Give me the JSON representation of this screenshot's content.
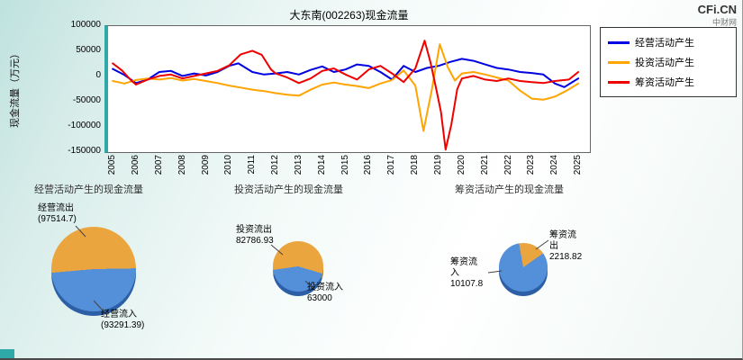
{
  "watermark": {
    "brand": "CFi.CN",
    "sub": "中财网"
  },
  "colors": {
    "outflow": "#eba53e",
    "inflow": "#5390d9",
    "outflow_dark": "#b87c15",
    "inflow_dark": "#2c5fa6",
    "accent_teal": "#2fa8a8"
  },
  "chart_data": {
    "type": "line",
    "title": "大东南(002263)现金流量",
    "xlabel": "",
    "ylabel": "现金流量（万元）",
    "xlim": [
      2004.8,
      2025.5
    ],
    "ylim": [
      -150000,
      100000
    ],
    "grid": false,
    "legend_position": "right-outside",
    "y_ticks": [
      100000,
      50000,
      0,
      -50000,
      -100000,
      -150000
    ],
    "x_ticks": [
      2005,
      2006,
      2007,
      2008,
      2009,
      2010,
      2011,
      2012,
      2013,
      2014,
      2015,
      2016,
      2017,
      2018,
      2019,
      2020,
      2021,
      2022,
      2023,
      2024,
      2025
    ],
    "series": [
      {
        "id": "operating",
        "name": "经营活动产生",
        "color": "#0000e0",
        "points": [
          [
            2005,
            15000
          ],
          [
            2005.5,
            3000
          ],
          [
            2006,
            -13000
          ],
          [
            2006.5,
            -6000
          ],
          [
            2007,
            9000
          ],
          [
            2007.5,
            11000
          ],
          [
            2008,
            1000
          ],
          [
            2008.5,
            6000
          ],
          [
            2009,
            2000
          ],
          [
            2009.5,
            9000
          ],
          [
            2010,
            21000
          ],
          [
            2010.4,
            26000
          ],
          [
            2011,
            9000
          ],
          [
            2011.5,
            4000
          ],
          [
            2012,
            6000
          ],
          [
            2012.5,
            9000
          ],
          [
            2013,
            4000
          ],
          [
            2013.5,
            13000
          ],
          [
            2014,
            20000
          ],
          [
            2014.5,
            9000
          ],
          [
            2015,
            14000
          ],
          [
            2015.5,
            24000
          ],
          [
            2016,
            21000
          ],
          [
            2016.5,
            9000
          ],
          [
            2017,
            -6000
          ],
          [
            2017.5,
            21000
          ],
          [
            2018,
            9000
          ],
          [
            2018.5,
            17000
          ],
          [
            2019,
            21000
          ],
          [
            2019.5,
            29000
          ],
          [
            2020,
            35000
          ],
          [
            2020.5,
            31000
          ],
          [
            2021,
            24000
          ],
          [
            2021.5,
            17000
          ],
          [
            2022,
            14000
          ],
          [
            2022.5,
            9000
          ],
          [
            2023,
            7000
          ],
          [
            2023.5,
            4000
          ],
          [
            2024,
            -14000
          ],
          [
            2024.4,
            -21000
          ],
          [
            2025,
            -4000
          ]
        ]
      },
      {
        "id": "investing",
        "name": "投资活动产生",
        "color": "#ffa400",
        "points": [
          [
            2005,
            -9000
          ],
          [
            2005.5,
            -14000
          ],
          [
            2006,
            -7000
          ],
          [
            2006.5,
            -4000
          ],
          [
            2007,
            -6000
          ],
          [
            2007.5,
            -3000
          ],
          [
            2008,
            -8000
          ],
          [
            2008.5,
            -5000
          ],
          [
            2009,
            -9000
          ],
          [
            2009.5,
            -13000
          ],
          [
            2010,
            -18000
          ],
          [
            2010.5,
            -22000
          ],
          [
            2011,
            -26000
          ],
          [
            2011.5,
            -29000
          ],
          [
            2012,
            -33000
          ],
          [
            2012.5,
            -36000
          ],
          [
            2013,
            -38000
          ],
          [
            2013.5,
            -26000
          ],
          [
            2014,
            -16000
          ],
          [
            2014.5,
            -12000
          ],
          [
            2015,
            -16000
          ],
          [
            2015.5,
            -19000
          ],
          [
            2016,
            -23000
          ],
          [
            2016.5,
            -14000
          ],
          [
            2017,
            -7000
          ],
          [
            2017.5,
            12000
          ],
          [
            2018,
            -18000
          ],
          [
            2018.35,
            -108000
          ],
          [
            2018.7,
            -28000
          ],
          [
            2019.05,
            64000
          ],
          [
            2019.4,
            18000
          ],
          [
            2019.7,
            -8000
          ],
          [
            2020,
            6000
          ],
          [
            2020.5,
            9000
          ],
          [
            2021,
            4000
          ],
          [
            2021.5,
            -2000
          ],
          [
            2022,
            -8000
          ],
          [
            2022.5,
            -28000
          ],
          [
            2023,
            -44000
          ],
          [
            2023.5,
            -46000
          ],
          [
            2024,
            -40000
          ],
          [
            2024.5,
            -28000
          ],
          [
            2025,
            -14000
          ]
        ]
      },
      {
        "id": "financing",
        "name": "筹资活动产生",
        "color": "#ee0000",
        "points": [
          [
            2005,
            26000
          ],
          [
            2005.4,
            12000
          ],
          [
            2005.8,
            -8000
          ],
          [
            2006,
            -16000
          ],
          [
            2006.5,
            -6000
          ],
          [
            2007,
            1000
          ],
          [
            2007.5,
            4000
          ],
          [
            2008,
            -4000
          ],
          [
            2008.5,
            1000
          ],
          [
            2009,
            6000
          ],
          [
            2009.5,
            11000
          ],
          [
            2010,
            22000
          ],
          [
            2010.5,
            44000
          ],
          [
            2011,
            51000
          ],
          [
            2011.4,
            43000
          ],
          [
            2011.8,
            14000
          ],
          [
            2012,
            6000
          ],
          [
            2012.5,
            -2000
          ],
          [
            2013,
            -13000
          ],
          [
            2013.5,
            -4000
          ],
          [
            2014,
            11000
          ],
          [
            2014.5,
            16000
          ],
          [
            2015,
            4000
          ],
          [
            2015.5,
            -6000
          ],
          [
            2016,
            14000
          ],
          [
            2016.5,
            21000
          ],
          [
            2017,
            6000
          ],
          [
            2017.5,
            -11000
          ],
          [
            2018,
            16000
          ],
          [
            2018.4,
            71000
          ],
          [
            2018.65,
            28000
          ],
          [
            2018.9,
            -25000
          ],
          [
            2019.1,
            -70000
          ],
          [
            2019.3,
            -145000
          ],
          [
            2019.55,
            -95000
          ],
          [
            2019.8,
            -25000
          ],
          [
            2020,
            -4000
          ],
          [
            2020.5,
            1000
          ],
          [
            2021,
            -6000
          ],
          [
            2021.5,
            -9000
          ],
          [
            2022,
            -4000
          ],
          [
            2022.5,
            -9000
          ],
          [
            2023,
            -11000
          ],
          [
            2023.5,
            -13000
          ],
          [
            2024,
            -9000
          ],
          [
            2024.6,
            -6000
          ],
          [
            2025,
            9000
          ]
        ]
      }
    ]
  },
  "pie_sections": [
    {
      "title": "经营活动产生的现金流量",
      "start_deg": 265,
      "outflow": {
        "label": "经营流出",
        "display": "(97514.7)",
        "value": 97514.7
      },
      "inflow": {
        "label": "经营流入",
        "display": "(93291.39)",
        "value": 93291.39
      }
    },
    {
      "title": "投资活动产生的现金流量",
      "start_deg": 262,
      "outflow": {
        "label": "投资流出",
        "display": "82786.93",
        "value": 82786.93
      },
      "inflow": {
        "label": "投资流入",
        "display": "63000",
        "value": 63000
      }
    },
    {
      "title": "筹资活动产生的现金流量",
      "start_deg": 350,
      "outflow": {
        "label": "筹资流出",
        "display": "2218.82",
        "value": 2218.82
      },
      "inflow": {
        "label": "筹资流入",
        "display": "10107.8",
        "value": 10107.8
      }
    }
  ]
}
